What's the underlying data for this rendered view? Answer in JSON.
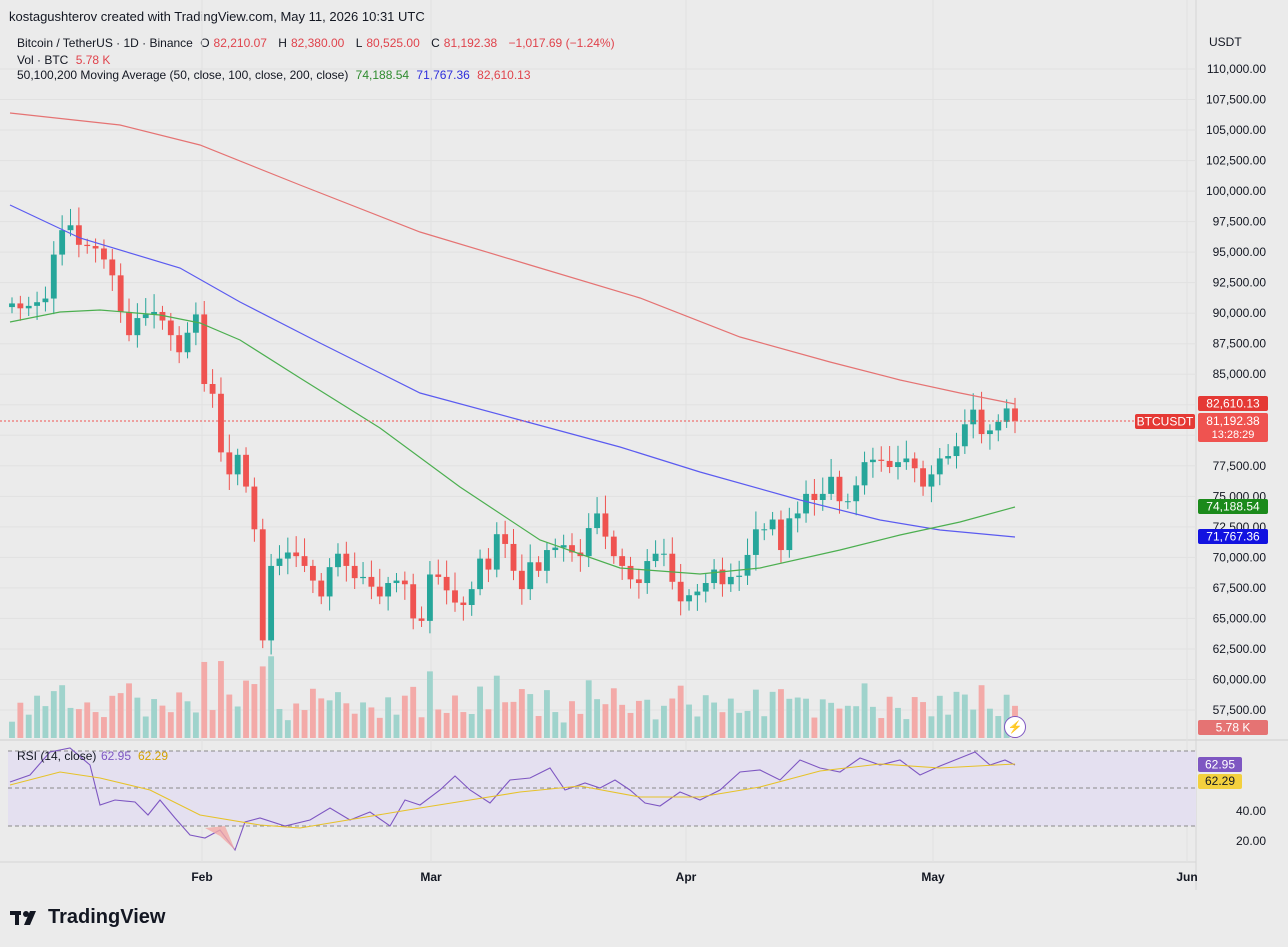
{
  "header": {
    "attribution": "kostagushterov created with TradingView.com, May 11, 2026 10:31 UTC",
    "symbol_line": "Bitcoin / TetherUS · 1D · Binance",
    "o_label": "O",
    "o_value": "82,210.07",
    "h_label": "H",
    "h_value": "82,380.00",
    "l_label": "L",
    "l_value": "80,525.00",
    "c_label": "C",
    "c_value": "81,192.38",
    "change": "−1,017.69 (−1.24%)",
    "vol_label": "Vol · BTC",
    "vol_value": "5.78 K",
    "ma_label": "50,100,200 Moving Average (50, close, 100, close, 200, close)",
    "ma50": "74,188.54",
    "ma100": "71,767.36",
    "ma200": "82,610.13"
  },
  "rsi_header": {
    "label": "RSI (14, close)",
    "rsi": "62.95",
    "ma": "62.29"
  },
  "footer": {
    "brand": "TradingView"
  },
  "colors": {
    "up": "#26a69a",
    "down": "#ef5350",
    "ma50": "#4caf50",
    "ma100": "#5b5bf0",
    "ma200": "#e57373",
    "rsi": "#7e57c2",
    "rsi_ma": "#e6c229"
  },
  "chart_data": {
    "type": "candlestick",
    "currency": "USDT",
    "y_ticks": [
      "110,000.00",
      "107,500.00",
      "105,000.00",
      "102,500.00",
      "100,000.00",
      "97,500.00",
      "95,000.00",
      "92,500.00",
      "90,000.00",
      "87,500.00",
      "85,000.00",
      "77,500.00",
      "75,000.00",
      "72,500.00",
      "70,000.00",
      "67,500.00",
      "65,000.00",
      "62,500.00",
      "60,000.00",
      "57,500.00"
    ],
    "x_ticks": [
      "Feb",
      "Mar",
      "Apr",
      "May",
      "Jun"
    ],
    "price_labels": {
      "ma200": "82,610.13",
      "symbol": "BTCUSDT",
      "last": "81,192.38",
      "countdown": "13:28:29",
      "ma50": "74,188.54",
      "ma100": "71,767.36",
      "volume": "5.78 K"
    },
    "rsi_ticks": [
      "40.00",
      "20.00"
    ],
    "candles_close": [
      90800,
      90400,
      90600,
      90900,
      91200,
      94800,
      96800,
      97200,
      95600,
      95500,
      95300,
      94400,
      93100,
      90100,
      88200,
      89600,
      89900,
      90100,
      89400,
      88200,
      86800,
      88400,
      89900,
      84200,
      83400,
      78600,
      76800,
      78400,
      75800,
      72300,
      63200,
      69300,
      69900,
      70400,
      70100,
      69300,
      68100,
      66800,
      69200,
      70300,
      69300,
      68300,
      68400,
      67600,
      66800,
      67900,
      68100,
      67800,
      65000,
      64800,
      68600,
      68400,
      67300,
      66300,
      66100,
      67400,
      69900,
      69000,
      71900,
      71100,
      68900,
      67400,
      69600,
      68900,
      70600,
      70800,
      71000,
      70400,
      70100,
      72400,
      73600,
      71700,
      70100,
      69300,
      68200,
      67900,
      69700,
      70300,
      70300,
      68000,
      66400,
      66900,
      67200,
      67900,
      69000,
      67800,
      68400,
      68500,
      70200,
      72300,
      72300,
      73100,
      70600,
      73200,
      73600,
      75200,
      74700,
      75200,
      76600,
      74600,
      74600,
      75900,
      77800,
      78000,
      77900,
      77400,
      77800,
      78100,
      77300,
      75800,
      76800,
      78100,
      78300,
      79100,
      80900,
      82100,
      80100,
      80400,
      81100,
      82200,
      81192
    ]
  }
}
